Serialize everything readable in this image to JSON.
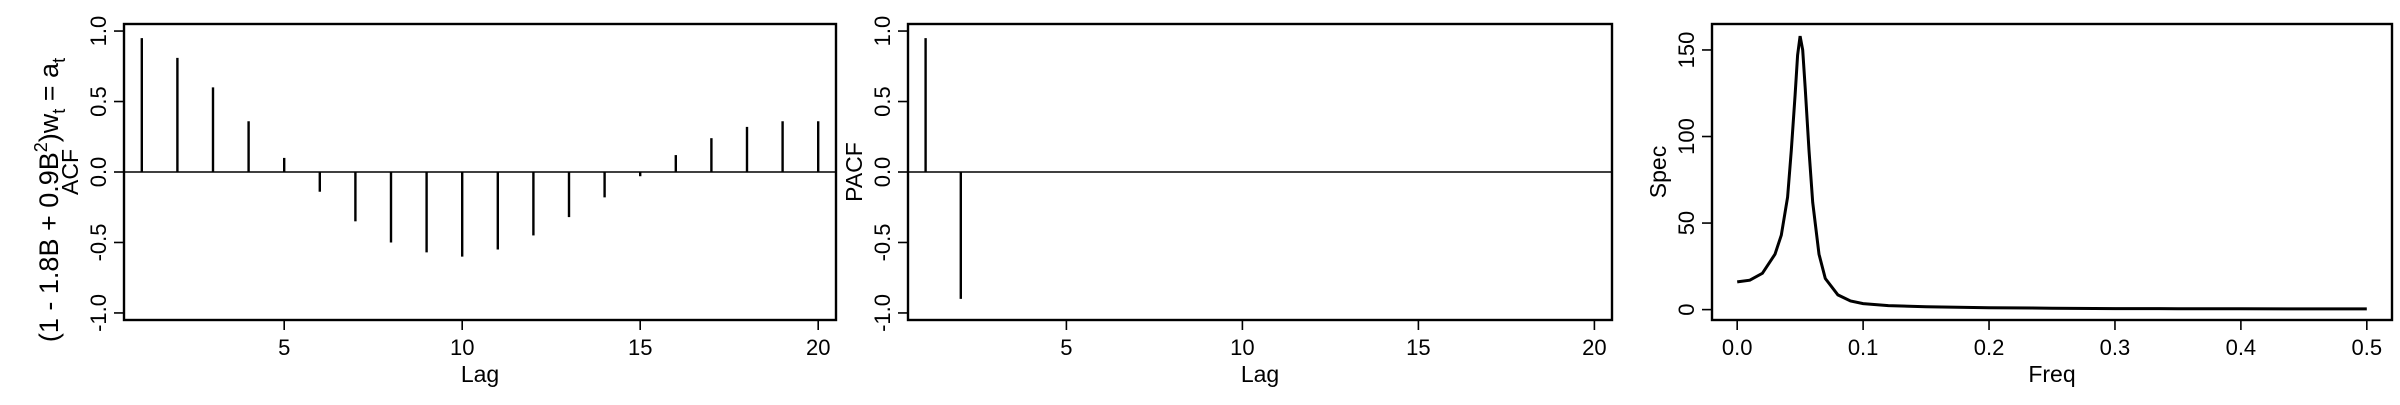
{
  "row_label": {
    "before_b2": "(1 - 1.8B + 0.9B",
    "sup": "2",
    "after_sup": ")w",
    "sub": "t",
    "eq": " = a",
    "sub2": "t"
  },
  "chart_data": [
    {
      "type": "bar",
      "title": "",
      "xlabel": "Lag",
      "ylabel": "ACF",
      "xlim": [
        0.5,
        20.5
      ],
      "ylim": [
        -1.05,
        1.05
      ],
      "xticks": [
        5,
        10,
        15,
        20
      ],
      "xtick_labels": [
        "5",
        "10",
        "15",
        "20"
      ],
      "yticks": [
        -1.0,
        -0.5,
        0.0,
        0.5,
        1.0
      ],
      "ytick_labels": [
        "-1.0",
        "-0.5",
        "0.0",
        "0.5",
        "1.0"
      ],
      "zero_line": true,
      "x": [
        1,
        2,
        3,
        4,
        5,
        6,
        7,
        8,
        9,
        10,
        11,
        12,
        13,
        14,
        15,
        16,
        17,
        18,
        19,
        20
      ],
      "values": [
        0.95,
        0.81,
        0.6,
        0.36,
        0.1,
        -0.14,
        -0.35,
        -0.5,
        -0.57,
        -0.6,
        -0.55,
        -0.45,
        -0.32,
        -0.18,
        -0.03,
        0.12,
        0.24,
        0.32,
        0.36,
        0.36
      ]
    },
    {
      "type": "bar",
      "title": "",
      "xlabel": "Lag",
      "ylabel": "PACF",
      "xlim": [
        0.5,
        20.5
      ],
      "ylim": [
        -1.05,
        1.05
      ],
      "xticks": [
        5,
        10,
        15,
        20
      ],
      "xtick_labels": [
        "5",
        "10",
        "15",
        "20"
      ],
      "yticks": [
        -1.0,
        -0.5,
        0.0,
        0.5,
        1.0
      ],
      "ytick_labels": [
        "-1.0",
        "-0.5",
        "0.0",
        "0.5",
        "1.0"
      ],
      "zero_line": true,
      "x": [
        1,
        2,
        3,
        4,
        5,
        6,
        7,
        8,
        9,
        10,
        11,
        12,
        13,
        14,
        15,
        16,
        17,
        18,
        19,
        20
      ],
      "values": [
        0.95,
        -0.9,
        0,
        0,
        0,
        0,
        0,
        0,
        0,
        0,
        0,
        0,
        0,
        0,
        0,
        0,
        0,
        0,
        0,
        0
      ]
    },
    {
      "type": "line",
      "title": "",
      "xlabel": "Freq",
      "ylabel": "Spec",
      "xlim": [
        -0.02,
        0.52
      ],
      "ylim": [
        -6,
        165
      ],
      "xticks": [
        0.0,
        0.1,
        0.2,
        0.3,
        0.4,
        0.5
      ],
      "xtick_labels": [
        "0.0",
        "0.1",
        "0.2",
        "0.3",
        "0.4",
        "0.5"
      ],
      "yticks": [
        0,
        50,
        100,
        150
      ],
      "ytick_labels": [
        "0",
        "50",
        "100",
        "150"
      ],
      "x": [
        0.0,
        0.01,
        0.02,
        0.03,
        0.035,
        0.04,
        0.043,
        0.046,
        0.048,
        0.05,
        0.052,
        0.054,
        0.057,
        0.06,
        0.065,
        0.07,
        0.08,
        0.09,
        0.1,
        0.12,
        0.15,
        0.2,
        0.25,
        0.3,
        0.35,
        0.4,
        0.45,
        0.5
      ],
      "values": [
        16,
        17,
        21,
        32,
        43,
        65,
        92,
        124,
        147,
        158,
        150,
        128,
        92,
        62,
        32,
        18,
        8.5,
        5,
        3.5,
        2.3,
        1.6,
        1.1,
        0.8,
        0.6,
        0.5,
        0.45,
        0.4,
        0.4
      ]
    }
  ]
}
